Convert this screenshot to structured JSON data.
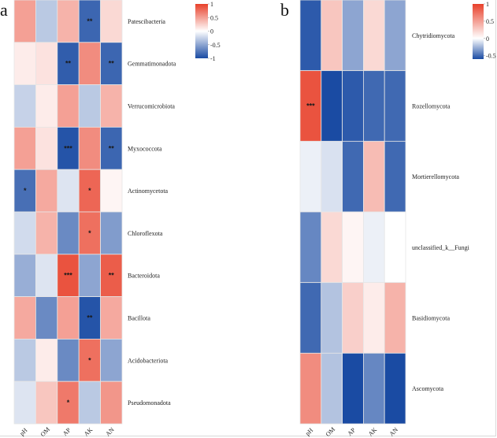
{
  "chart_data": [
    {
      "type": "heatmap",
      "panel_label": "a",
      "columns": [
        "pH",
        "OM",
        "AP",
        "AK",
        "AN"
      ],
      "rows": [
        "Patescibacteria",
        "Gemmatimonadota",
        "Verrucomicrobiota",
        "Myxococcota",
        "Actinomycetota",
        "Chloroflexota",
        "Bacteroidota",
        "Bacillota",
        "Acidobacteriota",
        "Pseudomonadota"
      ],
      "values": [
        [
          0.5,
          -0.3,
          0.4,
          -0.85,
          0.2
        ],
        [
          0.1,
          0.15,
          -0.9,
          0.6,
          -0.85
        ],
        [
          -0.25,
          0.1,
          0.5,
          -0.3,
          0.4
        ],
        [
          0.5,
          0.15,
          -0.95,
          0.6,
          -0.85
        ],
        [
          -0.8,
          0.45,
          -0.15,
          0.8,
          0.05
        ],
        [
          -0.2,
          0.4,
          -0.65,
          0.75,
          -0.55
        ],
        [
          -0.45,
          -0.15,
          0.9,
          -0.5,
          0.85
        ],
        [
          0.45,
          -0.65,
          0.5,
          -0.95,
          0.45
        ],
        [
          -0.3,
          0.1,
          -0.65,
          0.75,
          -0.5
        ],
        [
          -0.15,
          0.3,
          0.7,
          -0.3,
          0.55
        ]
      ],
      "significance": [
        [
          "",
          "",
          "",
          "**",
          ""
        ],
        [
          "",
          "",
          "**",
          "",
          "**"
        ],
        [
          "",
          "",
          "",
          "",
          ""
        ],
        [
          "",
          "",
          "***",
          "",
          "**"
        ],
        [
          "*",
          "",
          "",
          "*",
          ""
        ],
        [
          "",
          "",
          "",
          "*",
          ""
        ],
        [
          "",
          "",
          "***",
          "",
          "**"
        ],
        [
          "",
          "",
          "",
          "**",
          ""
        ],
        [
          "",
          "",
          "",
          "*",
          ""
        ],
        [
          "",
          "",
          "*",
          "",
          ""
        ]
      ],
      "legend": {
        "ticks": [
          "1",
          "0.5",
          "0",
          "-0.5",
          "-1"
        ],
        "range": [
          -1,
          1
        ]
      },
      "colors": {
        "high": "#E8402A",
        "mid": "#FFFFFF",
        "low": "#1A4BA3"
      }
    },
    {
      "type": "heatmap",
      "panel_label": "b",
      "columns": [
        "pH",
        "OM",
        "AP",
        "AK",
        "AN"
      ],
      "rows": [
        "Chytridiomycota",
        "Rozellomycota",
        "Mortierellomycota",
        "unclassified_k__Fungi",
        "Basidiomycota",
        "Ascomycota"
      ],
      "values": [
        [
          -0.55,
          0.3,
          -0.3,
          0.2,
          -0.3
        ],
        [
          0.9,
          -0.6,
          -0.55,
          -0.5,
          -0.5
        ],
        [
          -0.05,
          -0.1,
          -0.5,
          0.35,
          -0.5
        ],
        [
          -0.4,
          0.2,
          0.05,
          -0.05,
          0.0
        ],
        [
          -0.5,
          -0.2,
          0.25,
          0.1,
          0.4
        ],
        [
          0.6,
          -0.2,
          -0.6,
          -0.4,
          -0.6
        ]
      ],
      "significance": [
        [
          "",
          "",
          "",
          "",
          ""
        ],
        [
          "***",
          "",
          "",
          "",
          ""
        ],
        [
          "",
          "",
          "",
          "",
          ""
        ],
        [
          "",
          "",
          "",
          "",
          ""
        ],
        [
          "",
          "",
          "",
          "",
          ""
        ],
        [
          "",
          "",
          "",
          "",
          ""
        ]
      ],
      "legend": {
        "ticks": [
          "1",
          "0.5",
          "0",
          "-0.5"
        ],
        "range": [
          -0.6,
          1
        ]
      },
      "colors": {
        "high": "#E8402A",
        "mid": "#FFFFFF",
        "low": "#1A4BA3"
      }
    }
  ]
}
